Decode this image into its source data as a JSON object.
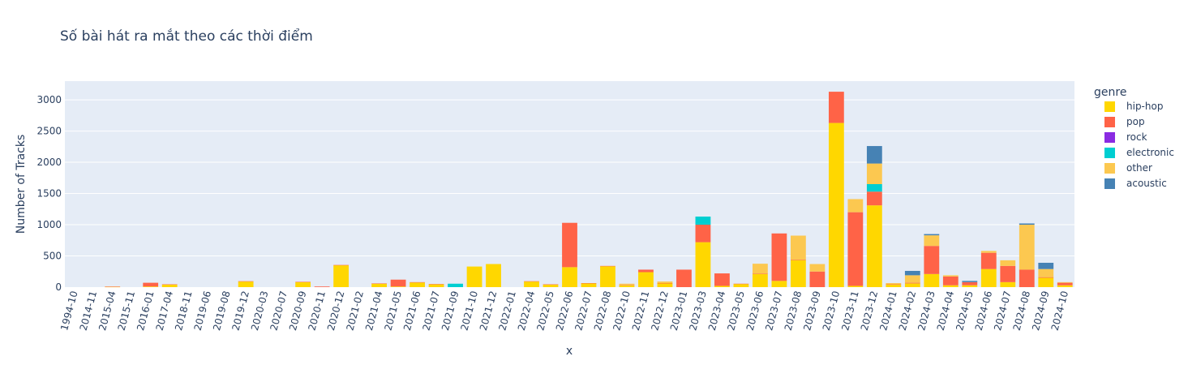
{
  "chart_data": {
    "type": "bar",
    "stacked": true,
    "title": "Số bài hát ra mắt theo các thời điểm",
    "xlabel": "x",
    "ylabel": "Number of Tracks",
    "ylim": [
      0,
      3300
    ],
    "yticks": [
      0,
      500,
      1000,
      1500,
      2000,
      2500,
      3000
    ],
    "grid": true,
    "legend_title": "genre",
    "legend_position": "right",
    "plot_bgcolor": "#e5ecf6",
    "categories": [
      "1994-10",
      "2014-11",
      "2015-04",
      "2015-11",
      "2016-01",
      "2017-04",
      "2018-11",
      "2019-06",
      "2019-08",
      "2019-12",
      "2020-03",
      "2020-07",
      "2020-09",
      "2020-11",
      "2020-12",
      "2021-02",
      "2021-04",
      "2021-05",
      "2021-06",
      "2021-07",
      "2021-09",
      "2021-10",
      "2021-12",
      "2022-01",
      "2022-04",
      "2022-05",
      "2022-06",
      "2022-07",
      "2022-08",
      "2022-10",
      "2022-11",
      "2022-12",
      "2023-01",
      "2023-03",
      "2023-04",
      "2023-05",
      "2023-06",
      "2023-07",
      "2023-08",
      "2023-09",
      "2023-10",
      "2023-11",
      "2023-12",
      "2024-01",
      "2024-02",
      "2024-03",
      "2024-04",
      "2024-05",
      "2024-06",
      "2024-07",
      "2024-08",
      "2024-09",
      "2024-10"
    ],
    "series": [
      {
        "name": "hip-hop",
        "color": "#ffd700",
        "values": [
          0,
          0,
          5,
          0,
          10,
          40,
          0,
          0,
          0,
          90,
          0,
          0,
          80,
          0,
          350,
          0,
          55,
          10,
          75,
          45,
          0,
          330,
          370,
          0,
          90,
          40,
          320,
          60,
          335,
          30,
          240,
          60,
          0,
          720,
          20,
          50,
          210,
          100,
          430,
          0,
          2630,
          20,
          1310,
          40,
          60,
          210,
          30,
          30,
          290,
          80,
          0,
          150,
          30
        ]
      },
      {
        "name": "pop",
        "color": "#ff6347",
        "values": [
          0,
          0,
          5,
          0,
          60,
          5,
          0,
          0,
          0,
          5,
          0,
          0,
          5,
          10,
          5,
          0,
          5,
          110,
          5,
          5,
          0,
          0,
          0,
          0,
          5,
          5,
          710,
          5,
          5,
          5,
          40,
          5,
          280,
          280,
          200,
          5,
          5,
          760,
          5,
          250,
          500,
          1180,
          220,
          5,
          10,
          450,
          140,
          50,
          260,
          260,
          280,
          10,
          40
        ]
      },
      {
        "name": "rock",
        "color": "#8a2be2",
        "values": [
          0,
          0,
          0,
          0,
          0,
          0,
          0,
          0,
          0,
          0,
          0,
          0,
          0,
          0,
          0,
          0,
          0,
          0,
          0,
          0,
          0,
          0,
          0,
          0,
          0,
          0,
          0,
          0,
          0,
          0,
          0,
          0,
          0,
          0,
          0,
          0,
          0,
          0,
          0,
          0,
          0,
          0,
          0,
          0,
          0,
          0,
          0,
          0,
          0,
          0,
          0,
          0,
          0
        ]
      },
      {
        "name": "electronic",
        "color": "#00ced1",
        "values": [
          0,
          0,
          0,
          0,
          0,
          0,
          0,
          0,
          0,
          0,
          0,
          0,
          0,
          0,
          0,
          0,
          0,
          0,
          0,
          0,
          55,
          0,
          0,
          0,
          0,
          0,
          0,
          0,
          0,
          0,
          0,
          0,
          0,
          130,
          0,
          0,
          0,
          0,
          0,
          0,
          0,
          0,
          120,
          0,
          0,
          0,
          0,
          0,
          0,
          0,
          0,
          0,
          0
        ]
      },
      {
        "name": "other",
        "color": "#fcc850",
        "values": [
          0,
          0,
          0,
          0,
          0,
          0,
          0,
          0,
          0,
          0,
          0,
          0,
          0,
          0,
          0,
          0,
          0,
          0,
          0,
          0,
          0,
          0,
          0,
          0,
          0,
          0,
          0,
          0,
          0,
          20,
          0,
          25,
          0,
          0,
          0,
          0,
          160,
          0,
          390,
          120,
          0,
          210,
          330,
          20,
          120,
          170,
          20,
          0,
          30,
          90,
          720,
          130,
          10
        ]
      },
      {
        "name": "acoustic",
        "color": "#4682b4",
        "values": [
          0,
          0,
          0,
          0,
          0,
          0,
          0,
          0,
          0,
          0,
          0,
          0,
          0,
          0,
          0,
          0,
          0,
          0,
          0,
          0,
          0,
          0,
          0,
          0,
          0,
          0,
          0,
          0,
          0,
          0,
          0,
          0,
          0,
          0,
          0,
          0,
          0,
          0,
          0,
          0,
          0,
          0,
          280,
          0,
          70,
          20,
          0,
          20,
          0,
          0,
          20,
          100,
          0
        ]
      }
    ]
  }
}
